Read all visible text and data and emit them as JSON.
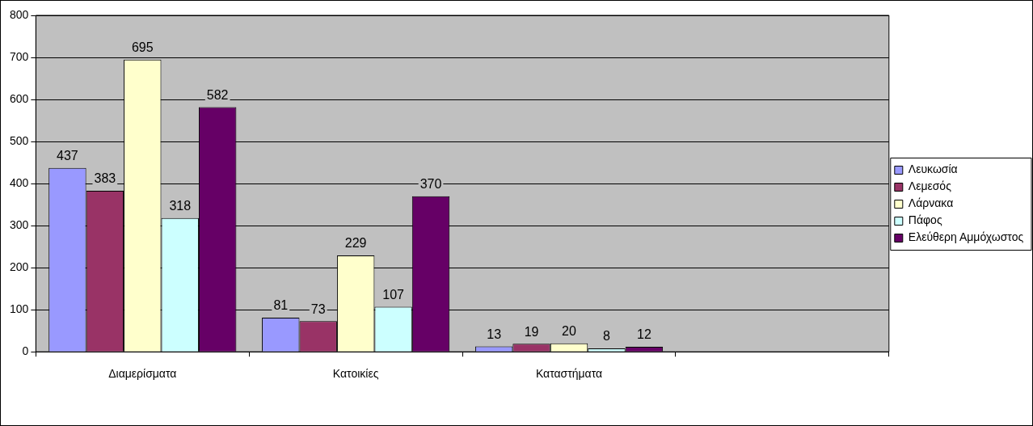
{
  "chart_data": {
    "type": "bar",
    "categories": [
      "Διαμερίσματα",
      "Κατοικίες",
      "Καταστήματα",
      null
    ],
    "series": [
      {
        "name": "Λευκωσία",
        "color": "#9999ff",
        "values": [
          437,
          81,
          13,
          null
        ]
      },
      {
        "name": "Λεμεσός",
        "color": "#993366",
        "values": [
          383,
          73,
          19,
          null
        ]
      },
      {
        "name": "Λάρνακα",
        "color": "#ffffcc",
        "values": [
          695,
          229,
          20,
          null
        ]
      },
      {
        "name": "Πάφος",
        "color": "#ccffff",
        "values": [
          318,
          107,
          8,
          null
        ]
      },
      {
        "name": "Ελεύθερη Αμμόχωστος",
        "color": "#660066",
        "values": [
          582,
          370,
          12,
          null
        ]
      }
    ],
    "ylim": [
      0,
      800
    ],
    "yticks": [
      0,
      100,
      200,
      300,
      400,
      500,
      600,
      700,
      800
    ],
    "grid": "y",
    "legend": "right",
    "data_labels": true
  }
}
